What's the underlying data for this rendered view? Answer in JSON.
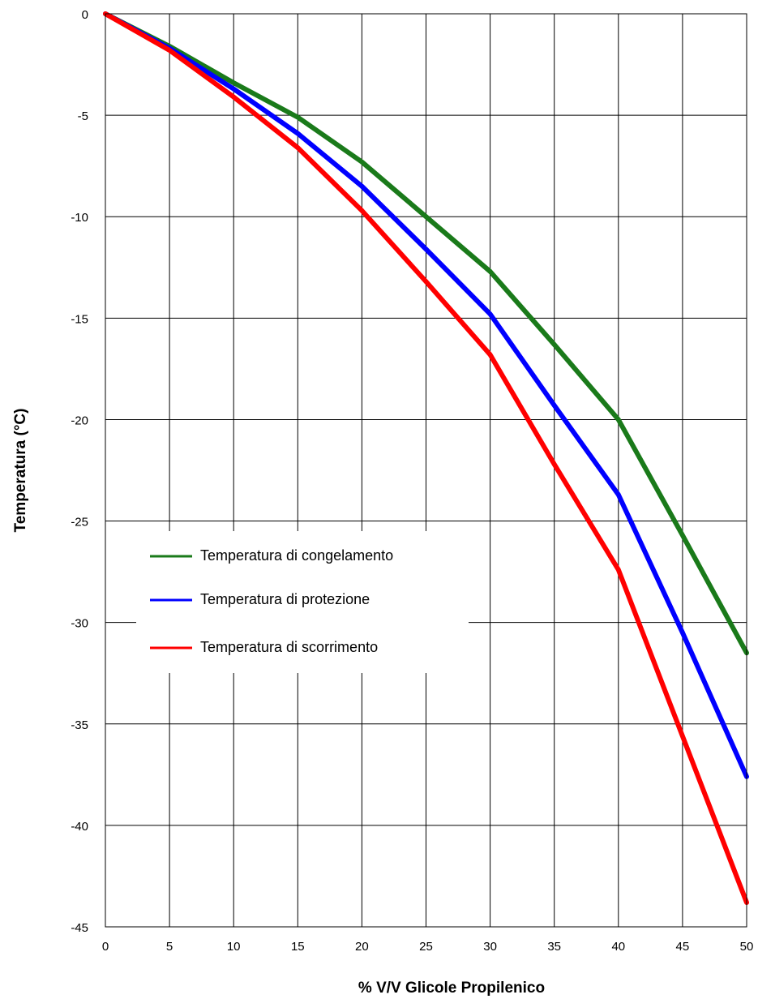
{
  "chart_data": {
    "type": "line",
    "title": "",
    "xlabel": "% V/V  Glicole Propilenico",
    "ylabel": "Temperatura (°C)",
    "xlim": [
      0,
      50
    ],
    "ylim": [
      -45,
      0
    ],
    "x_ticks": [
      0,
      5,
      10,
      15,
      20,
      25,
      30,
      35,
      40,
      45,
      50
    ],
    "y_ticks": [
      0,
      -5,
      -10,
      -15,
      -20,
      -25,
      -30,
      -35,
      -40,
      -45
    ],
    "grid": true,
    "legend_position": "left-middle",
    "series": [
      {
        "name": "Temperatura di congelamento",
        "color": "#1a7a1a",
        "x": [
          0,
          5,
          10,
          15,
          20,
          25,
          30,
          35,
          40,
          45,
          50
        ],
        "y": [
          0,
          -1.6,
          -3.4,
          -5.1,
          -7.3,
          -10.0,
          -12.7,
          -16.3,
          -20.0,
          -25.7,
          -31.5
        ]
      },
      {
        "name": "Temperatura di protezione",
        "color": "#0000ff",
        "x": [
          0,
          5,
          10,
          15,
          20,
          25,
          30,
          35,
          40,
          45,
          50
        ],
        "y": [
          0,
          -1.7,
          -3.7,
          -5.9,
          -8.5,
          -11.6,
          -14.8,
          -19.3,
          -23.7,
          -30.5,
          -37.6
        ]
      },
      {
        "name": "Temperatura di scorrimento",
        "color": "#ff0000",
        "x": [
          0,
          5,
          10,
          15,
          20,
          25,
          30,
          35,
          40,
          45,
          50
        ],
        "y": [
          0,
          -1.8,
          -4.1,
          -6.6,
          -9.7,
          -13.2,
          -16.8,
          -22.2,
          -27.4,
          -35.6,
          -43.8
        ]
      }
    ]
  }
}
